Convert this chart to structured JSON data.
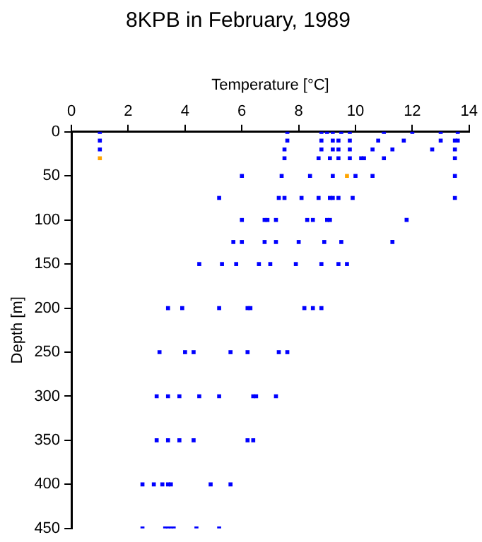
{
  "chart_data": {
    "type": "scatter",
    "title": "8KPB in February, 1989",
    "xlabel": "Temperature [°C]",
    "ylabel": "Depth [m]",
    "xlim": [
      0,
      14
    ],
    "xticks": [
      0,
      2,
      4,
      6,
      8,
      10,
      12,
      14
    ],
    "ylim": [
      450,
      0
    ],
    "yticks": [
      0,
      50,
      100,
      150,
      200,
      250,
      300,
      350,
      400,
      450
    ],
    "grid": false,
    "legend": false,
    "marker": "square",
    "series": [
      {
        "color": "#0000ff",
        "x": [
          1.0,
          7.6,
          8.8,
          9.0,
          9.2,
          9.5,
          9.8,
          11.0,
          12.0,
          13.0,
          13.6,
          1.0,
          7.6,
          8.8,
          9.2,
          9.4,
          9.8,
          10.8,
          11.7,
          13.0,
          13.5,
          13.6,
          1.0,
          7.5,
          8.8,
          9.2,
          9.4,
          9.8,
          10.6,
          11.3,
          12.7,
          13.5,
          7.5,
          8.7,
          9.1,
          9.4,
          9.8,
          10.2,
          10.3,
          11.0,
          13.5,
          6.0,
          7.4,
          8.4,
          9.2,
          10.0,
          10.6,
          13.5,
          5.2,
          7.3,
          7.5,
          8.1,
          8.7,
          9.1,
          9.2,
          9.4,
          9.9,
          13.5,
          6.0,
          6.8,
          6.9,
          7.2,
          8.3,
          8.5,
          9.0,
          9.1,
          11.8,
          5.7,
          6.0,
          6.8,
          7.2,
          8.0,
          8.9,
          9.5,
          11.3,
          4.5,
          5.3,
          5.8,
          6.6,
          7.0,
          7.9,
          8.8,
          9.4,
          9.7,
          3.4,
          3.9,
          5.2,
          6.2,
          6.3,
          8.2,
          8.5,
          8.8,
          3.1,
          4.0,
          4.3,
          5.6,
          6.2,
          7.3,
          7.6,
          3.0,
          3.4,
          3.8,
          4.5,
          5.2,
          6.4,
          6.5,
          7.2,
          3.0,
          3.4,
          3.8,
          4.3,
          6.2,
          6.4,
          2.5,
          2.9,
          3.2,
          3.4,
          3.5,
          4.9,
          5.6,
          2.5,
          3.3,
          3.4,
          3.5,
          3.6,
          4.4,
          5.2
        ],
        "values": [
          0,
          0,
          0,
          0,
          0,
          0,
          0,
          0,
          0,
          0,
          0,
          10,
          10,
          10,
          10,
          10,
          10,
          10,
          10,
          10,
          10,
          10,
          20,
          20,
          20,
          20,
          20,
          20,
          20,
          20,
          20,
          20,
          30,
          30,
          30,
          30,
          30,
          30,
          30,
          30,
          30,
          50,
          50,
          50,
          50,
          50,
          50,
          50,
          75,
          75,
          75,
          75,
          75,
          75,
          75,
          75,
          75,
          75,
          100,
          100,
          100,
          100,
          100,
          100,
          100,
          100,
          100,
          125,
          125,
          125,
          125,
          125,
          125,
          125,
          125,
          150,
          150,
          150,
          150,
          150,
          150,
          150,
          150,
          150,
          200,
          200,
          200,
          200,
          200,
          200,
          200,
          200,
          250,
          250,
          250,
          250,
          250,
          250,
          250,
          300,
          300,
          300,
          300,
          300,
          300,
          300,
          300,
          350,
          350,
          350,
          350,
          350,
          350,
          400,
          400,
          400,
          400,
          400,
          400,
          400,
          450,
          450,
          450,
          450,
          450,
          450,
          450
        ]
      },
      {
        "color": "#ffa500",
        "x": [
          1.0,
          9.7
        ],
        "values": [
          30,
          50
        ]
      }
    ]
  }
}
